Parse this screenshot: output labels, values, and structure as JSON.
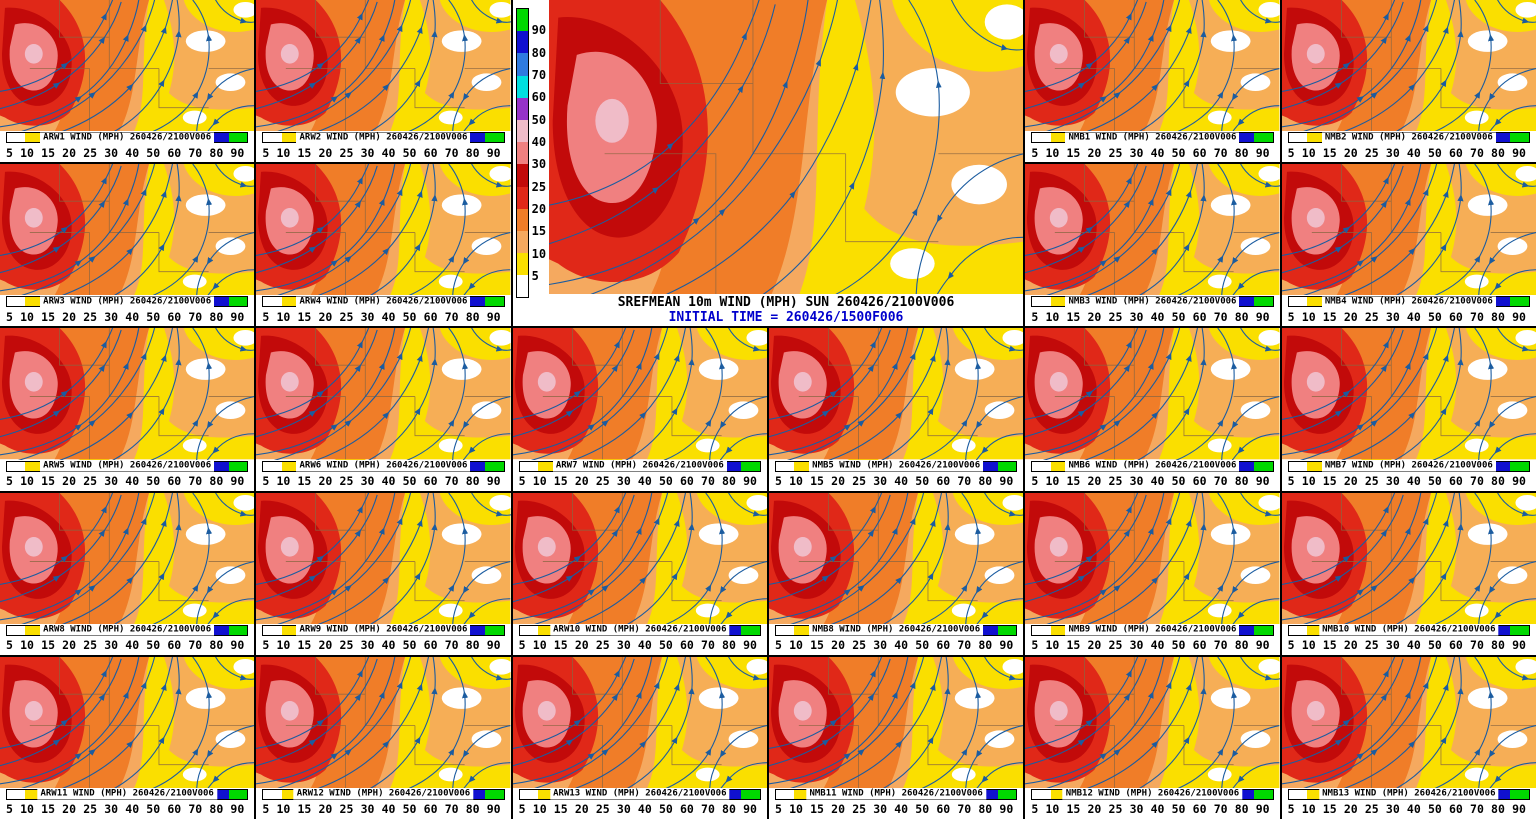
{
  "main_panel": {
    "title": "SREFMEAN 10m WIND (MPH) SUN 260426/2100V006",
    "initial_time": "INITIAL TIME = 260426/1500F006",
    "initial_time_color": "#0000CC",
    "legend": {
      "labels_top_to_bottom": [
        "90",
        "80",
        "70",
        "60",
        "50",
        "40",
        "30",
        "25",
        "20",
        "15",
        "10",
        "5"
      ],
      "colors_top_to_bottom": [
        "#00D800",
        "#1010D0",
        "#2F7BE0",
        "#00E0E0",
        "#9632C8",
        "#F0BCC8",
        "#F08080",
        "#C20A0A",
        "#E02818",
        "#F07D28",
        "#F5A95F",
        "#FADF00",
        "#FFFFFF"
      ]
    }
  },
  "colorbar": {
    "tick_labels": [
      "5",
      "10",
      "15",
      "20",
      "25",
      "30",
      "40",
      "50",
      "60",
      "70",
      "80",
      "90"
    ],
    "colors_left_to_right": [
      "#FFFFFF",
      "#FADF00",
      "#F5A95F",
      "#F07D28",
      "#E02818",
      "#C20A0A",
      "#F08080",
      "#F0BCC8",
      "#9632C8",
      "#00E0E0",
      "#2F7BE0",
      "#1010D0",
      "#00D800"
    ],
    "units": "MPH"
  },
  "map_style": {
    "streamline_color": "#1B5CA0",
    "state_border_color": "#8A6642",
    "calm_color": "#FFFFFF"
  },
  "panels": [
    {
      "id": "ARW1",
      "label": "ARW1 WIND (MPH) 260426/2100V006"
    },
    {
      "id": "ARW2",
      "label": "ARW2 WIND (MPH) 260426/2100V006"
    },
    {
      "id": "NMB1",
      "label": "NMB1 WIND (MPH) 260426/2100V006"
    },
    {
      "id": "NMB2",
      "label": "NMB2 WIND (MPH) 260426/2100V006"
    },
    {
      "id": "ARW3",
      "label": "ARW3 WIND (MPH) 260426/2100V006"
    },
    {
      "id": "ARW4",
      "label": "ARW4 WIND (MPH) 260426/2100V006"
    },
    {
      "id": "NMB3",
      "label": "NMB3 WIND (MPH) 260426/2100V006"
    },
    {
      "id": "NMB4",
      "label": "NMB4 WIND (MPH) 260426/2100V006"
    },
    {
      "id": "ARW5",
      "label": "ARW5 WIND (MPH) 260426/2100V006"
    },
    {
      "id": "ARW6",
      "label": "ARW6 WIND (MPH) 260426/2100V006"
    },
    {
      "id": "ARW7",
      "label": "ARW7 WIND (MPH) 260426/2100V006"
    },
    {
      "id": "NMB5",
      "label": "NMB5 WIND (MPH) 260426/2100V006"
    },
    {
      "id": "NMB6",
      "label": "NMB6 WIND (MPH) 260426/2100V006"
    },
    {
      "id": "NMB7",
      "label": "NMB7 WIND (MPH) 260426/2100V006"
    },
    {
      "id": "ARW8",
      "label": "ARW8 WIND (MPH) 260426/2100V006"
    },
    {
      "id": "ARW9",
      "label": "ARW9 WIND (MPH) 260426/2100V006"
    },
    {
      "id": "ARW10",
      "label": "ARW10 WIND (MPH) 260426/2100V006"
    },
    {
      "id": "NMB8",
      "label": "NMB8 WIND (MPH) 260426/2100V006"
    },
    {
      "id": "NMB9",
      "label": "NMB9 WIND (MPH) 260426/2100V006"
    },
    {
      "id": "NMB10",
      "label": "NMB10 WIND (MPH) 260426/2100V006"
    },
    {
      "id": "ARW11",
      "label": "ARW11 WIND (MPH) 260426/2100V006"
    },
    {
      "id": "ARW12",
      "label": "ARW12 WIND (MPH) 260426/2100V006"
    },
    {
      "id": "ARW13",
      "label": "ARW13 WIND (MPH) 260426/2100V006"
    },
    {
      "id": "NMB11",
      "label": "NMB11 WIND (MPH) 260426/2100V006"
    },
    {
      "id": "NMB12",
      "label": "NMB12 WIND (MPH) 260426/2100V006"
    },
    {
      "id": "NMB13",
      "label": "NMB13 WIND (MPH) 260426/2100V006"
    }
  ]
}
